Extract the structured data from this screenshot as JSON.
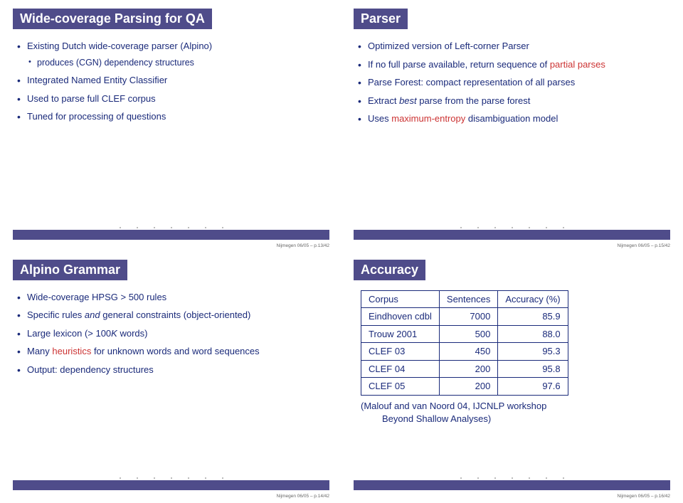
{
  "slides": {
    "tl": {
      "title": "Wide-coverage Parsing for QA",
      "bullets": [
        {
          "text": "Existing Dutch wide-coverage parser (Alpino)",
          "sub": [
            "produces (CGN) dependency structures"
          ]
        },
        {
          "text": "Integrated Named Entity Classifier"
        },
        {
          "text": "Used to parse full CLEF corpus"
        },
        {
          "text": "Tuned for processing of questions"
        }
      ],
      "page": "Nijmegen 06/05 – p.13/42"
    },
    "tr": {
      "title": "Parser",
      "bullets": [
        {
          "text": "Optimized version of Left-corner Parser"
        },
        {
          "html": "If no full parse available, return sequence of <span class=\"red\">partial parses</span>"
        },
        {
          "text": "Parse Forest: compact representation of all parses"
        },
        {
          "html": "Extract <span class=\"italic\">best</span> parse from the parse forest"
        },
        {
          "html": "Uses <span class=\"red\">maximum-entropy</span> disambiguation model"
        }
      ],
      "page": "Nijmegen 06/05 – p.15/42"
    },
    "bl": {
      "title": "Alpino Grammar",
      "bullets": [
        {
          "html": "Wide-coverage HPSG &gt; 500 rules"
        },
        {
          "html": "Specific rules <span class=\"italic\">and</span> general constraints (object-oriented)"
        },
        {
          "html": "Large lexicon (&gt; 100<i>K</i> words)"
        },
        {
          "html": "Many <span class=\"red\">heuristics</span> for unknown words and word sequences"
        },
        {
          "text": "Output: dependency structures"
        }
      ],
      "page": "Nijmegen 06/05 – p.14/42"
    },
    "br": {
      "title": "Accuracy",
      "table": {
        "headers": [
          "Corpus",
          "Sentences",
          "Accuracy (%)"
        ],
        "rows": [
          [
            "Eindhoven cdbl",
            "7000",
            "85.9"
          ],
          [
            "Trouw 2001",
            "500",
            "88.0"
          ],
          [
            "CLEF 03",
            "450",
            "95.3"
          ],
          [
            "CLEF 04",
            "200",
            "95.8"
          ],
          [
            "CLEF 05",
            "200",
            "97.6"
          ]
        ]
      },
      "note_line1": "(Malouf and van Noord 04, IJCNLP workshop",
      "note_line2": "Beyond Shallow Analyses)",
      "page": "Nijmegen 06/05 – p.16/42"
    }
  }
}
